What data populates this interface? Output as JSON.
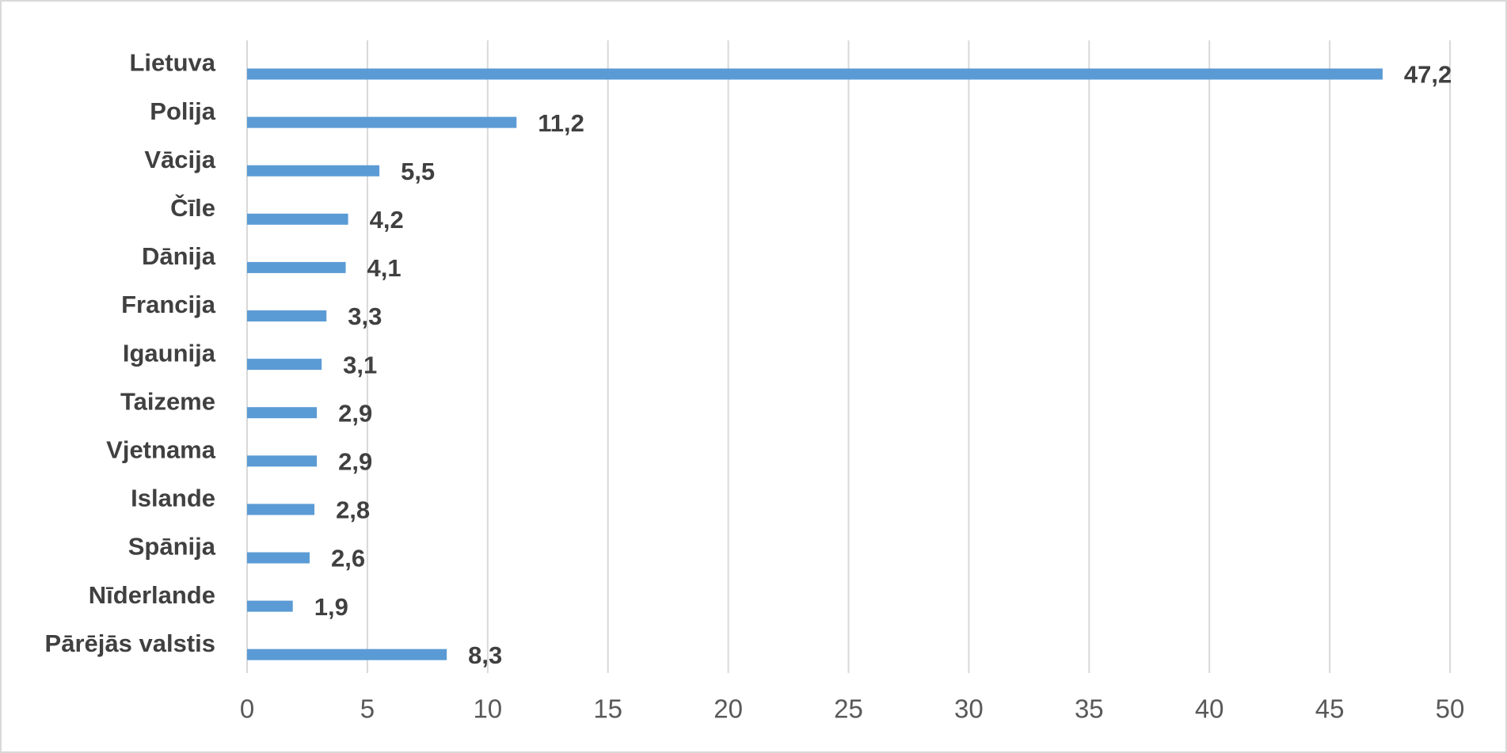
{
  "chart_data": {
    "type": "barh",
    "categories": [
      "Lietuva",
      "Polija",
      "Vācija",
      "Čīle",
      "Dānija",
      "Francija",
      "Igaunija",
      "Taizeme",
      "Vjetnama",
      "Islande",
      "Spānija",
      "Nīderlande",
      "Pārējās valstis"
    ],
    "values": [
      47.2,
      11.2,
      5.5,
      4.2,
      4.1,
      3.3,
      3.1,
      2.9,
      2.9,
      2.8,
      2.6,
      1.9,
      8.3
    ],
    "value_labels": [
      "47,2",
      "11,2",
      "5,5",
      "4,2",
      "4,1",
      "3,3",
      "3,1",
      "2,9",
      "2,9",
      "2,8",
      "2,6",
      "1,9",
      "8,3"
    ],
    "color": "#5b9bd5",
    "xlim": [
      0,
      50
    ],
    "xticks": [
      0,
      5,
      10,
      15,
      20,
      25,
      30,
      35,
      40,
      45,
      50
    ],
    "grid": true
  }
}
